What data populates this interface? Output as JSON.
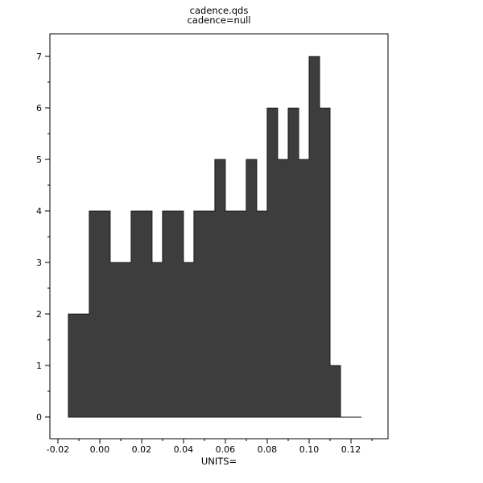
{
  "window": {
    "background": "#ffffff"
  },
  "chart_data": {
    "type": "bar",
    "subtype": "histogram",
    "title": "cadence.qds",
    "subtitle": "cadence=null",
    "xlabel": "UNITS=",
    "ylabel": "",
    "grid": false,
    "legend": "none",
    "bar_color": "#3d3d3d",
    "bar_edge_color": "#1a1a1a",
    "axis_color": "#000000",
    "xlim": [
      -0.0238,
      0.1377
    ],
    "ylim": [
      -0.42,
      7.44
    ],
    "x_tick_values": [
      -0.02,
      0.0,
      0.02,
      0.04,
      0.06,
      0.08,
      0.1,
      0.12
    ],
    "x_tick_labels": [
      "-0.02",
      "0.00",
      "0.02",
      "0.04",
      "0.06",
      "0.08",
      "0.10",
      "0.12"
    ],
    "x_minor_tick_values": [
      -0.01,
      0.01,
      0.03,
      0.05,
      0.07,
      0.09,
      0.11,
      0.13
    ],
    "y_tick_values": [
      0,
      1,
      2,
      3,
      4,
      5,
      6,
      7
    ],
    "y_tick_labels": [
      "0",
      "1",
      "2",
      "3",
      "4",
      "5",
      "6",
      "7"
    ],
    "y_minor_tick_values": [
      0.5,
      1.5,
      2.5,
      3.5,
      4.5,
      5.5,
      6.5
    ],
    "histogram": {
      "bin_start": -0.015,
      "bin_width": 0.005,
      "counts": [
        2,
        2,
        4,
        4,
        3,
        3,
        4,
        4,
        3,
        4,
        4,
        3,
        4,
        4,
        5,
        4,
        4,
        5,
        4,
        6,
        5,
        6,
        5,
        7,
        6,
        1,
        0,
        0
      ]
    }
  }
}
